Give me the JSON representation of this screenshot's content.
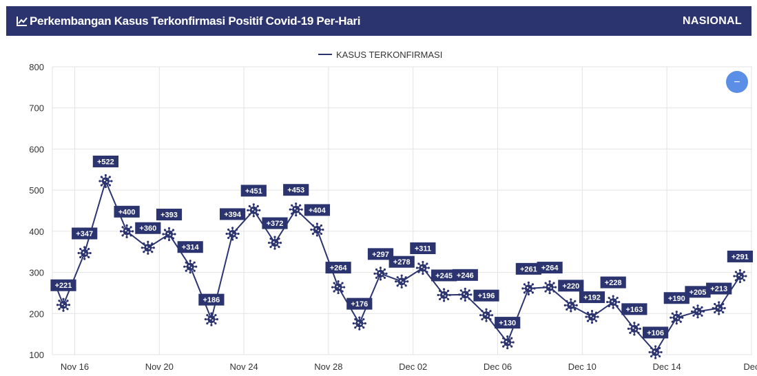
{
  "header": {
    "title": "Perkembangan Kasus Terkonfirmasi Positif Covid-19 Per-Hari",
    "scope": "NASIONAL",
    "icon": "line-chart-icon"
  },
  "colors": {
    "header_bg": "#2b346e",
    "series": "#2b346e",
    "zoom_button": "#5b8ee6"
  },
  "zoom_button": {
    "label": "−",
    "icon": "minus-icon"
  },
  "chart_data": {
    "type": "line",
    "legend": {
      "entries": [
        "KASUS TERKONFIRMASI"
      ],
      "position": "top-center"
    },
    "series": [
      {
        "name": "KASUS TERKONFIRMASI",
        "labels": [
          "+221",
          "+347",
          "+522",
          "+400",
          "+360",
          "+393",
          "+314",
          "+186",
          "+394",
          "+451",
          "+372",
          "+453",
          "+404",
          "+264",
          "+176",
          "+297",
          "+278",
          "+311",
          "+245",
          "+246",
          "+196",
          "+130",
          "+261",
          "+264",
          "+220",
          "+192",
          "+228",
          "+163",
          "+106",
          "+190",
          "+205",
          "+213",
          "+291"
        ],
        "values": [
          221,
          347,
          522,
          400,
          360,
          393,
          314,
          186,
          394,
          451,
          372,
          453,
          404,
          264,
          176,
          297,
          278,
          311,
          245,
          246,
          196,
          130,
          261,
          264,
          220,
          192,
          228,
          163,
          106,
          190,
          205,
          213,
          291
        ]
      }
    ],
    "x_ticks": [
      "Nov 16",
      "Nov 20",
      "Nov 24",
      "Nov 28",
      "Dec 02",
      "Dec 06",
      "Dec 10",
      "Dec 14",
      "Dec"
    ],
    "y_ticks": [
      100,
      200,
      300,
      400,
      500,
      600,
      700,
      800
    ],
    "ylim": [
      100,
      800
    ],
    "grid": true,
    "marker": "virus-icon"
  }
}
